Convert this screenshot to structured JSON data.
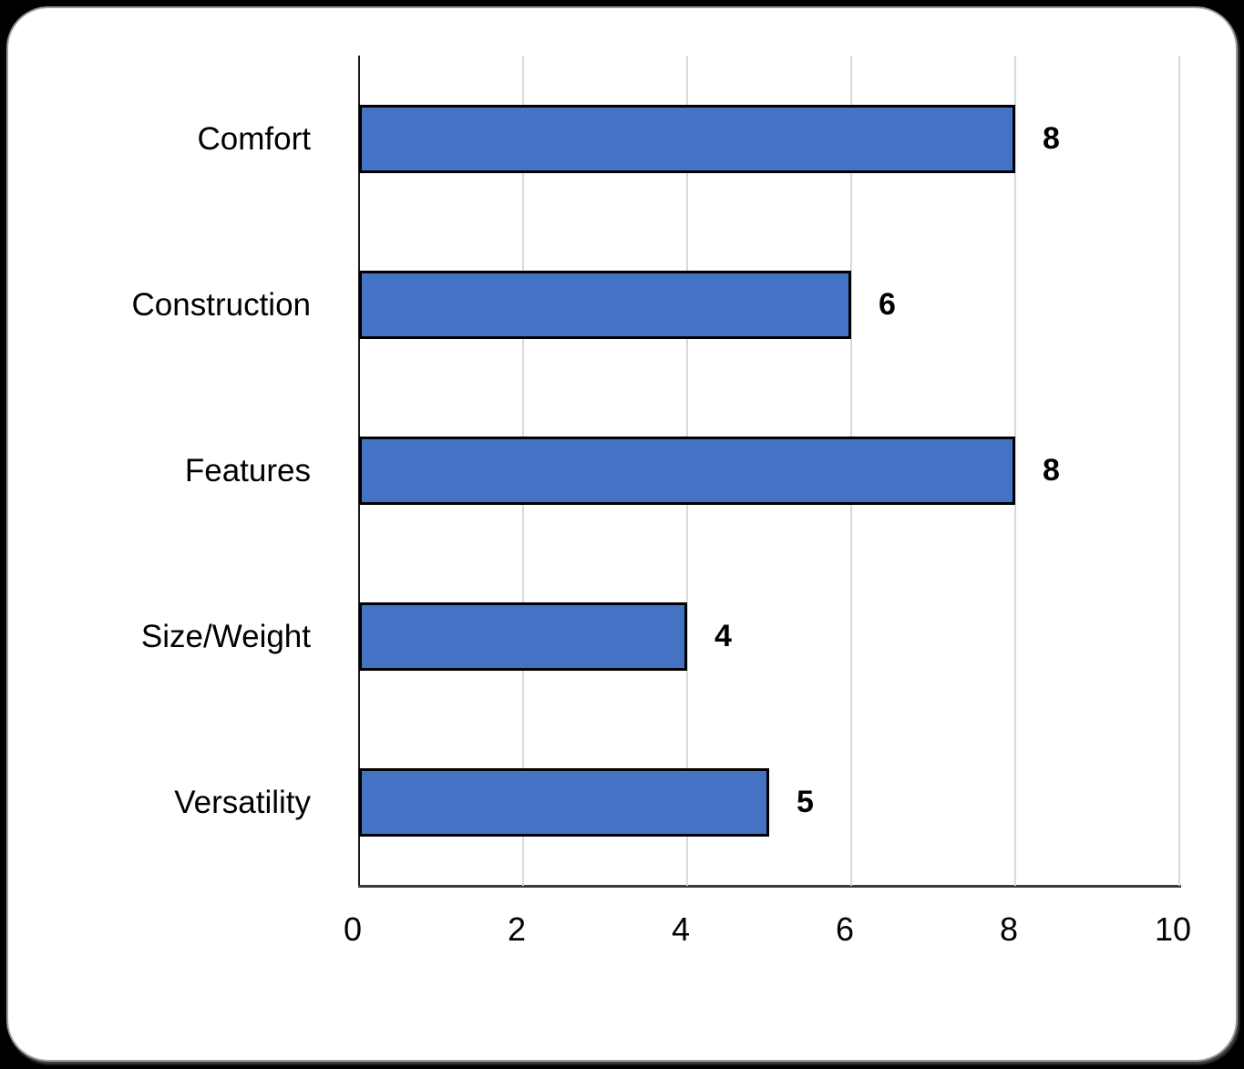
{
  "chart_data": {
    "type": "bar",
    "orientation": "horizontal",
    "categories": [
      "Comfort",
      "Construction",
      "Features",
      "Size/Weight",
      "Versatility"
    ],
    "values": [
      8,
      6,
      8,
      4,
      5
    ],
    "data_labels": [
      "8",
      "6",
      "8",
      "4",
      "5"
    ],
    "title": "",
    "xlabel": "",
    "ylabel": "",
    "xlim": [
      0,
      10
    ],
    "x_ticks": [
      0,
      2,
      4,
      6,
      8,
      10
    ],
    "x_tick_labels": [
      "0",
      "2",
      "4",
      "6",
      "8",
      "10"
    ],
    "grid": "vertical-on",
    "legend": "none",
    "colors": {
      "bar_fill": "#4472c4",
      "bar_border": "#000000",
      "gridline": "#d9d9d9",
      "axis_line": "#262626",
      "text": "#000000",
      "card_background": "#ffffff",
      "page_background": "#000000"
    }
  }
}
